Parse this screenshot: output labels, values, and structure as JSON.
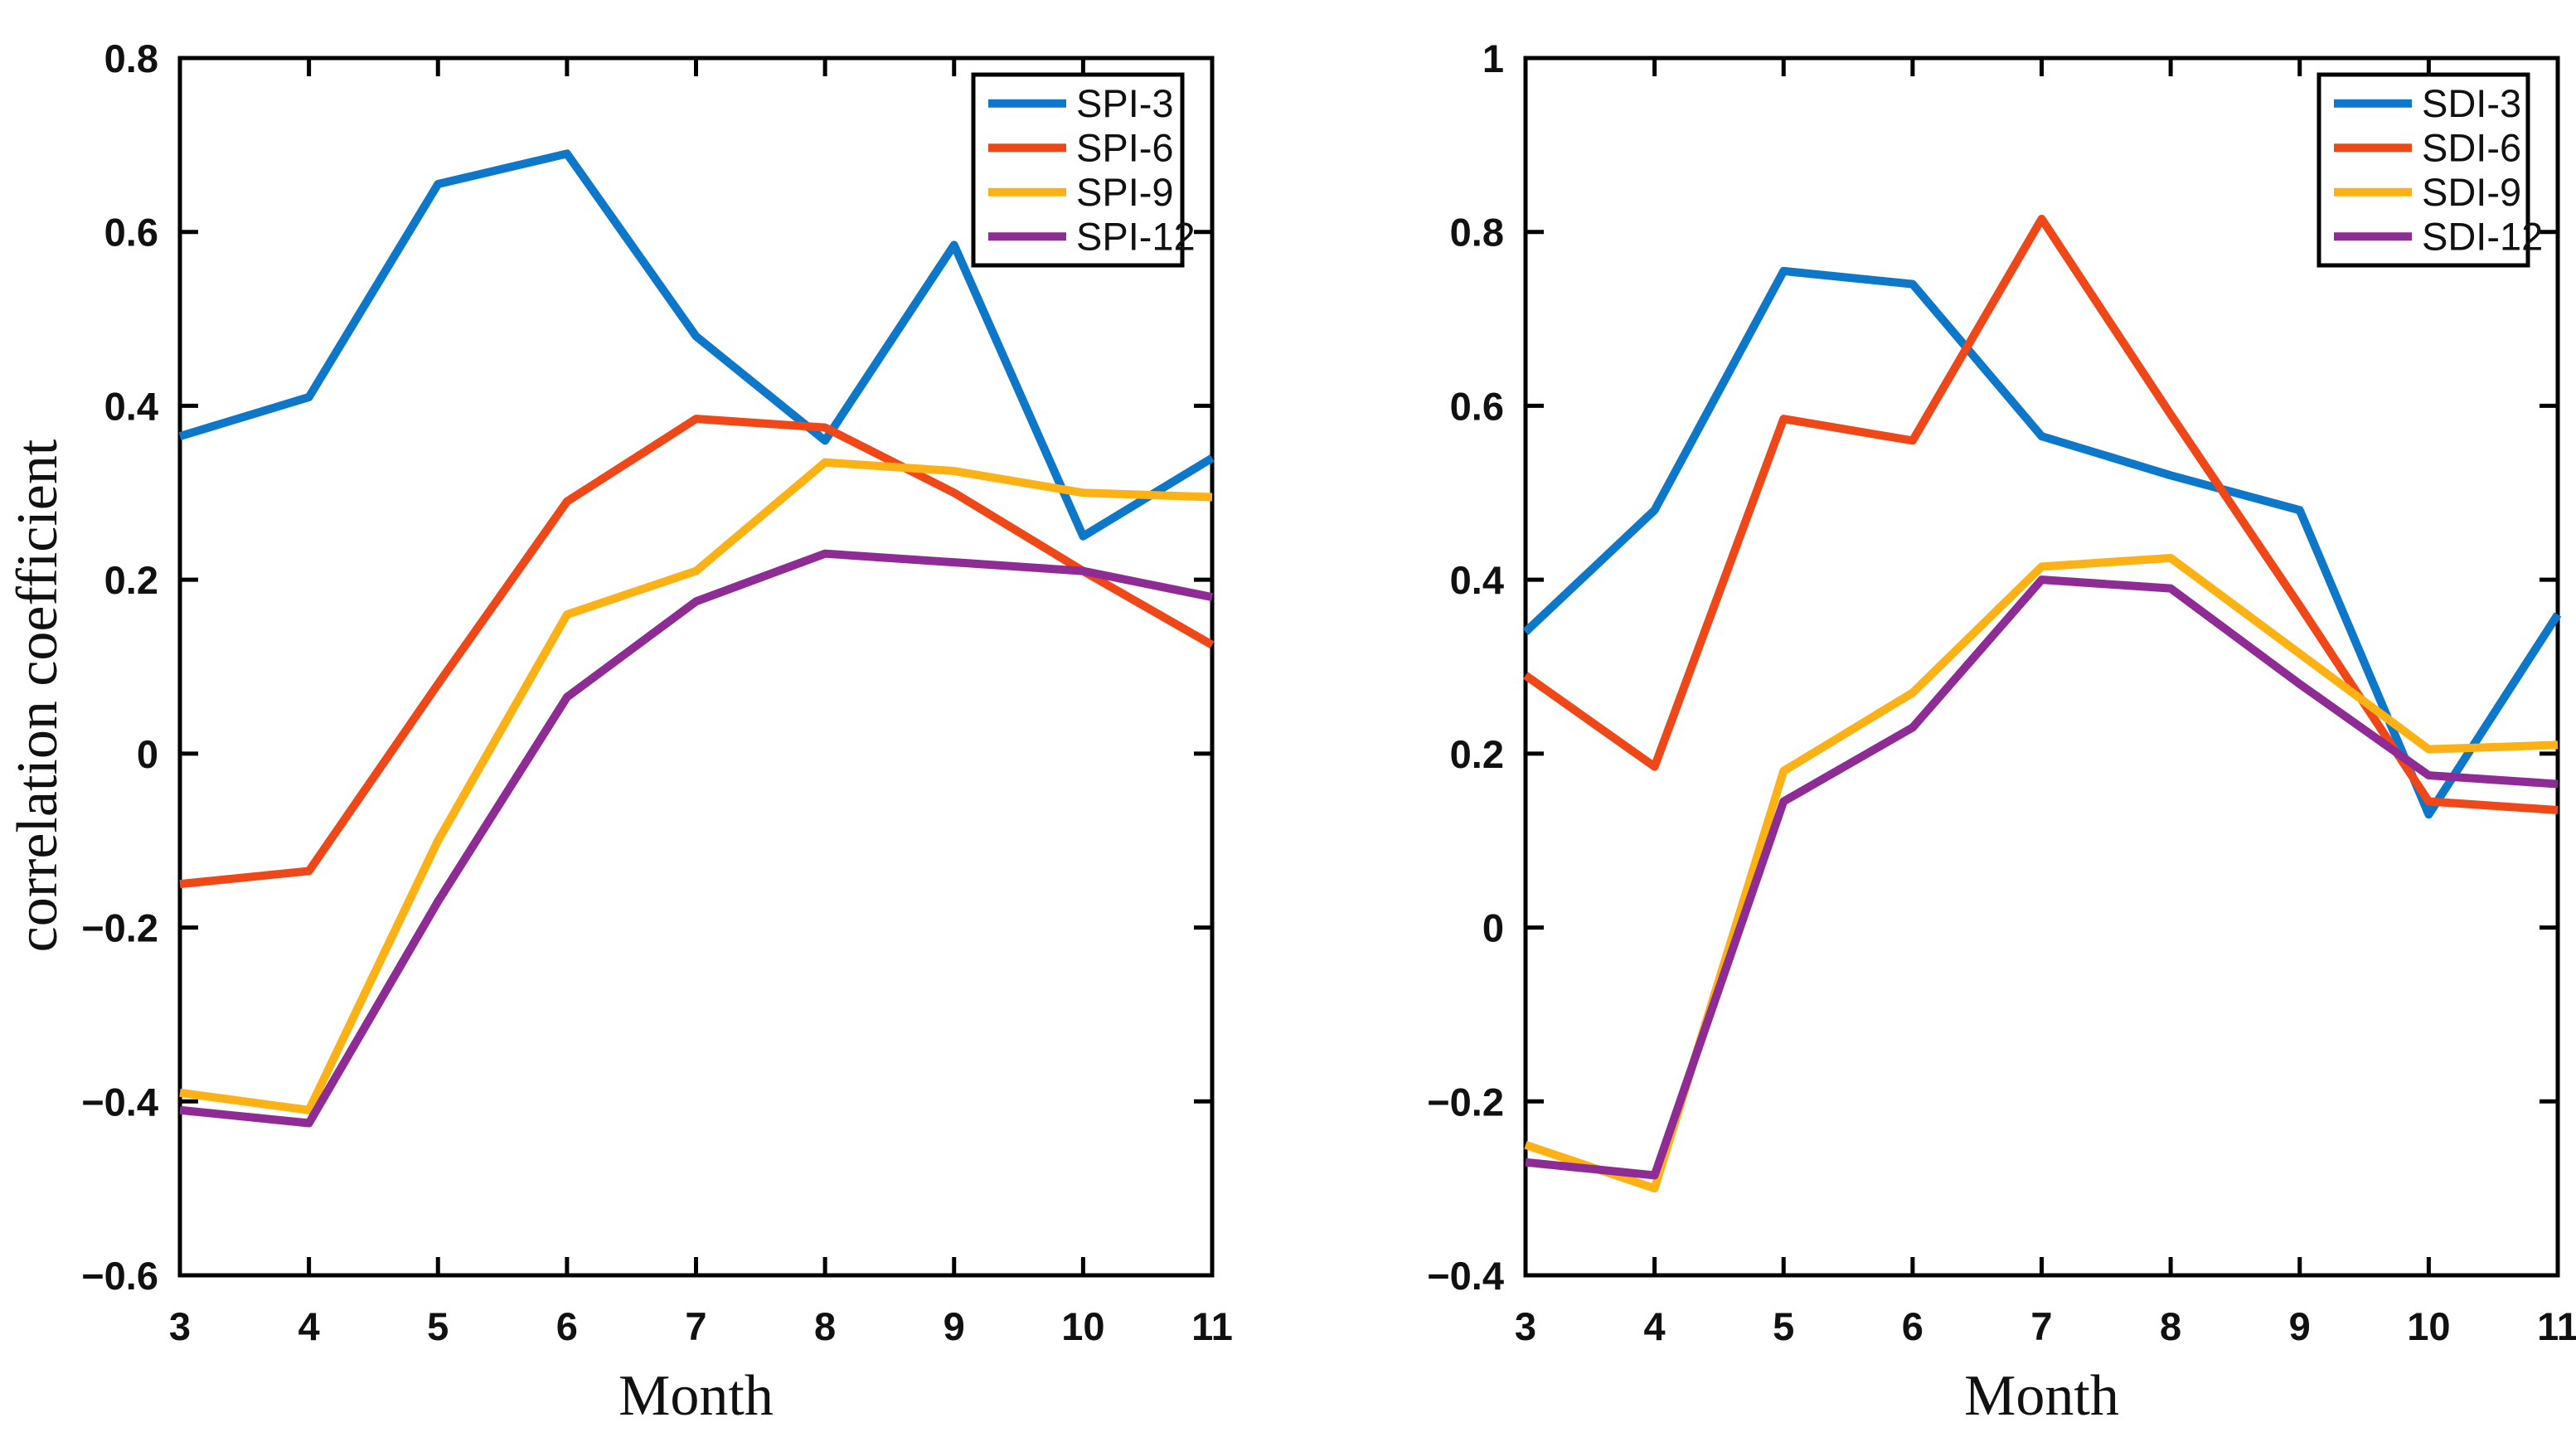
{
  "figure": {
    "background": "#ffffff",
    "axis_color": "#000000",
    "text_color": "#111111"
  },
  "colors": {
    "blue": "#0d78c9",
    "orange": "#f04718",
    "amber": "#fcb215",
    "purple": "#8e2b94"
  },
  "chart_data": [
    {
      "type": "line",
      "title": "",
      "xlabel": "Month",
      "ylabel": "correlation coefficient",
      "x": [
        3,
        4,
        5,
        6,
        7,
        8,
        9,
        10,
        11
      ],
      "xticklabels": [
        "3",
        "4",
        "5",
        "6",
        "7",
        "8",
        "9",
        "10",
        "11"
      ],
      "ylim": [
        -0.6,
        0.8
      ],
      "yticks": [
        0.8,
        0.6,
        0.4,
        0.2,
        0,
        -0.2,
        -0.4,
        -0.6
      ],
      "yticklabels": [
        "0.8",
        "0.6",
        "0.4",
        "0.2",
        "0",
        "−0.2",
        "−0.4",
        "−0.6"
      ],
      "grid": false,
      "box": true,
      "legend_position": "top-right",
      "series": [
        {
          "name": "SPI-3",
          "color_key": "blue",
          "values": [
            0.365,
            0.41,
            0.655,
            0.69,
            0.48,
            0.36,
            0.585,
            0.25,
            0.34
          ]
        },
        {
          "name": "SPI-6",
          "color_key": "orange",
          "values": [
            -0.15,
            -0.135,
            0.08,
            0.29,
            0.385,
            0.375,
            0.3,
            0.21,
            0.125
          ]
        },
        {
          "name": "SPI-9",
          "color_key": "amber",
          "values": [
            -0.39,
            -0.41,
            -0.1,
            0.16,
            0.21,
            0.335,
            0.325,
            0.3,
            0.295
          ]
        },
        {
          "name": "SPI-12",
          "color_key": "purple",
          "values": [
            -0.41,
            -0.425,
            -0.17,
            0.065,
            0.175,
            0.23,
            0.22,
            0.21,
            0.18
          ]
        }
      ]
    },
    {
      "type": "line",
      "title": "",
      "xlabel": "Month",
      "ylabel": "",
      "x": [
        3,
        4,
        5,
        6,
        7,
        8,
        9,
        10,
        11
      ],
      "xticklabels": [
        "3",
        "4",
        "5",
        "6",
        "7",
        "8",
        "9",
        "10",
        "11"
      ],
      "ylim": [
        -0.4,
        1.0
      ],
      "yticks": [
        1,
        0.8,
        0.6,
        0.4,
        0.2,
        0,
        -0.2,
        -0.4
      ],
      "yticklabels": [
        "1",
        "0.8",
        "0.6",
        "0.4",
        "0.2",
        "0",
        "−0.2",
        "−0.4"
      ],
      "grid": false,
      "box": true,
      "legend_position": "top-right",
      "series": [
        {
          "name": "SDI-3",
          "color_key": "blue",
          "values": [
            0.34,
            0.48,
            0.755,
            0.74,
            0.565,
            0.52,
            0.48,
            0.13,
            0.36
          ]
        },
        {
          "name": "SDI-6",
          "color_key": "orange",
          "values": [
            0.29,
            0.185,
            0.585,
            0.56,
            0.815,
            0.59,
            0.37,
            0.145,
            0.135
          ]
        },
        {
          "name": "SDI-9",
          "color_key": "amber",
          "values": [
            -0.25,
            -0.3,
            0.18,
            0.27,
            0.415,
            0.425,
            0.315,
            0.205,
            0.21
          ]
        },
        {
          "name": "SDI-12",
          "color_key": "purple",
          "values": [
            -0.27,
            -0.285,
            0.145,
            0.23,
            0.4,
            0.39,
            0.28,
            0.175,
            0.165
          ]
        }
      ]
    }
  ]
}
